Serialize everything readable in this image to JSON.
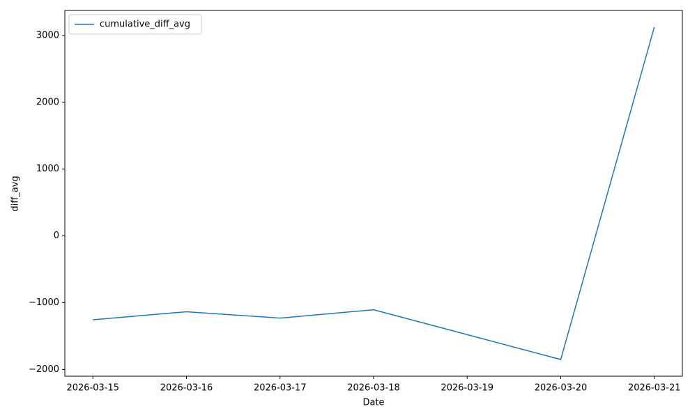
{
  "chart_data": {
    "type": "line",
    "x_label": "Date",
    "y_label": "diff_avg",
    "x": [
      "2026-03-15",
      "2026-03-16",
      "2026-03-17",
      "2026-03-18",
      "2026-03-20",
      "2026-03-21"
    ],
    "series": [
      {
        "name": "cumulative_diff_avg",
        "color": "#1f77b4",
        "values": [
          -1255,
          -1135,
          -1230,
          -1105,
          -1850,
          3125
        ]
      }
    ],
    "xlim": [
      "2026-03-14T16:48",
      "2026-03-21T07:12"
    ],
    "xticks": [
      "2026-03-15",
      "2026-03-16",
      "2026-03-17",
      "2026-03-18",
      "2026-03-19",
      "2026-03-20",
      "2026-03-21"
    ],
    "ylim": [
      -2100,
      3375
    ],
    "yticks": [
      {
        "value": -2000,
        "label": "−2000"
      },
      {
        "value": -1000,
        "label": "−1000"
      },
      0,
      1000,
      2000,
      3000
    ],
    "legend": "upper left",
    "grid": false
  }
}
